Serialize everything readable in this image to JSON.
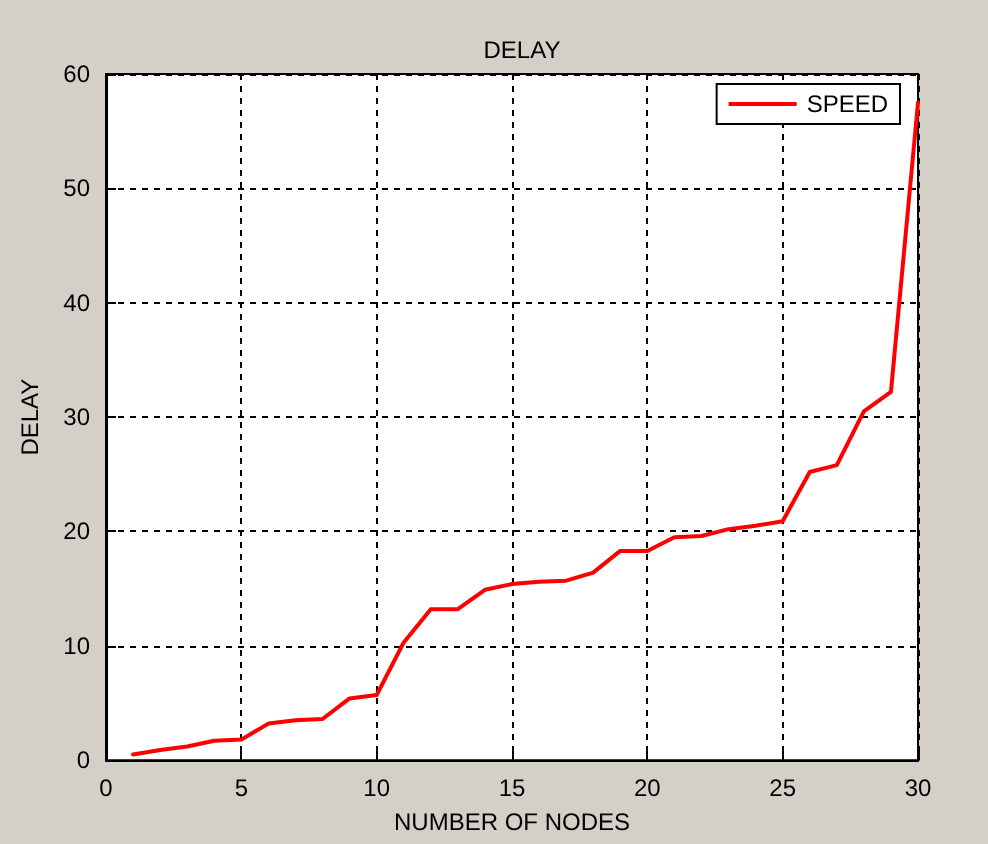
{
  "chart_data": {
    "type": "line",
    "title": "DELAY",
    "xlabel": "NUMBER OF NODES",
    "ylabel": "DELAY",
    "x": [
      1,
      2,
      3,
      4,
      5,
      6,
      7,
      8,
      9,
      10,
      11,
      12,
      13,
      14,
      15,
      16,
      17,
      18,
      19,
      20,
      21,
      22,
      23,
      24,
      25,
      26,
      27,
      28,
      29,
      30
    ],
    "series": [
      {
        "name": "SPEED",
        "color": "#ff0000",
        "values": [
          0.5,
          0.9,
          1.2,
          1.7,
          1.8,
          3.2,
          3.5,
          3.6,
          5.4,
          5.7,
          10.3,
          13.2,
          13.2,
          14.9,
          15.4,
          15.6,
          15.7,
          16.4,
          18.3,
          18.3,
          19.5,
          19.6,
          20.2,
          20.5,
          20.9,
          25.2,
          25.8,
          30.5,
          32.2,
          57.5
        ]
      }
    ],
    "xlim": [
      0,
      30
    ],
    "xticks": [
      0,
      5,
      10,
      15,
      20,
      25,
      30
    ],
    "ylim": [
      0,
      60
    ],
    "yticks": [
      0,
      10,
      20,
      30,
      40,
      50,
      60
    ],
    "grid": true,
    "legend": "top right",
    "marker": "none",
    "line_style": "solid"
  }
}
